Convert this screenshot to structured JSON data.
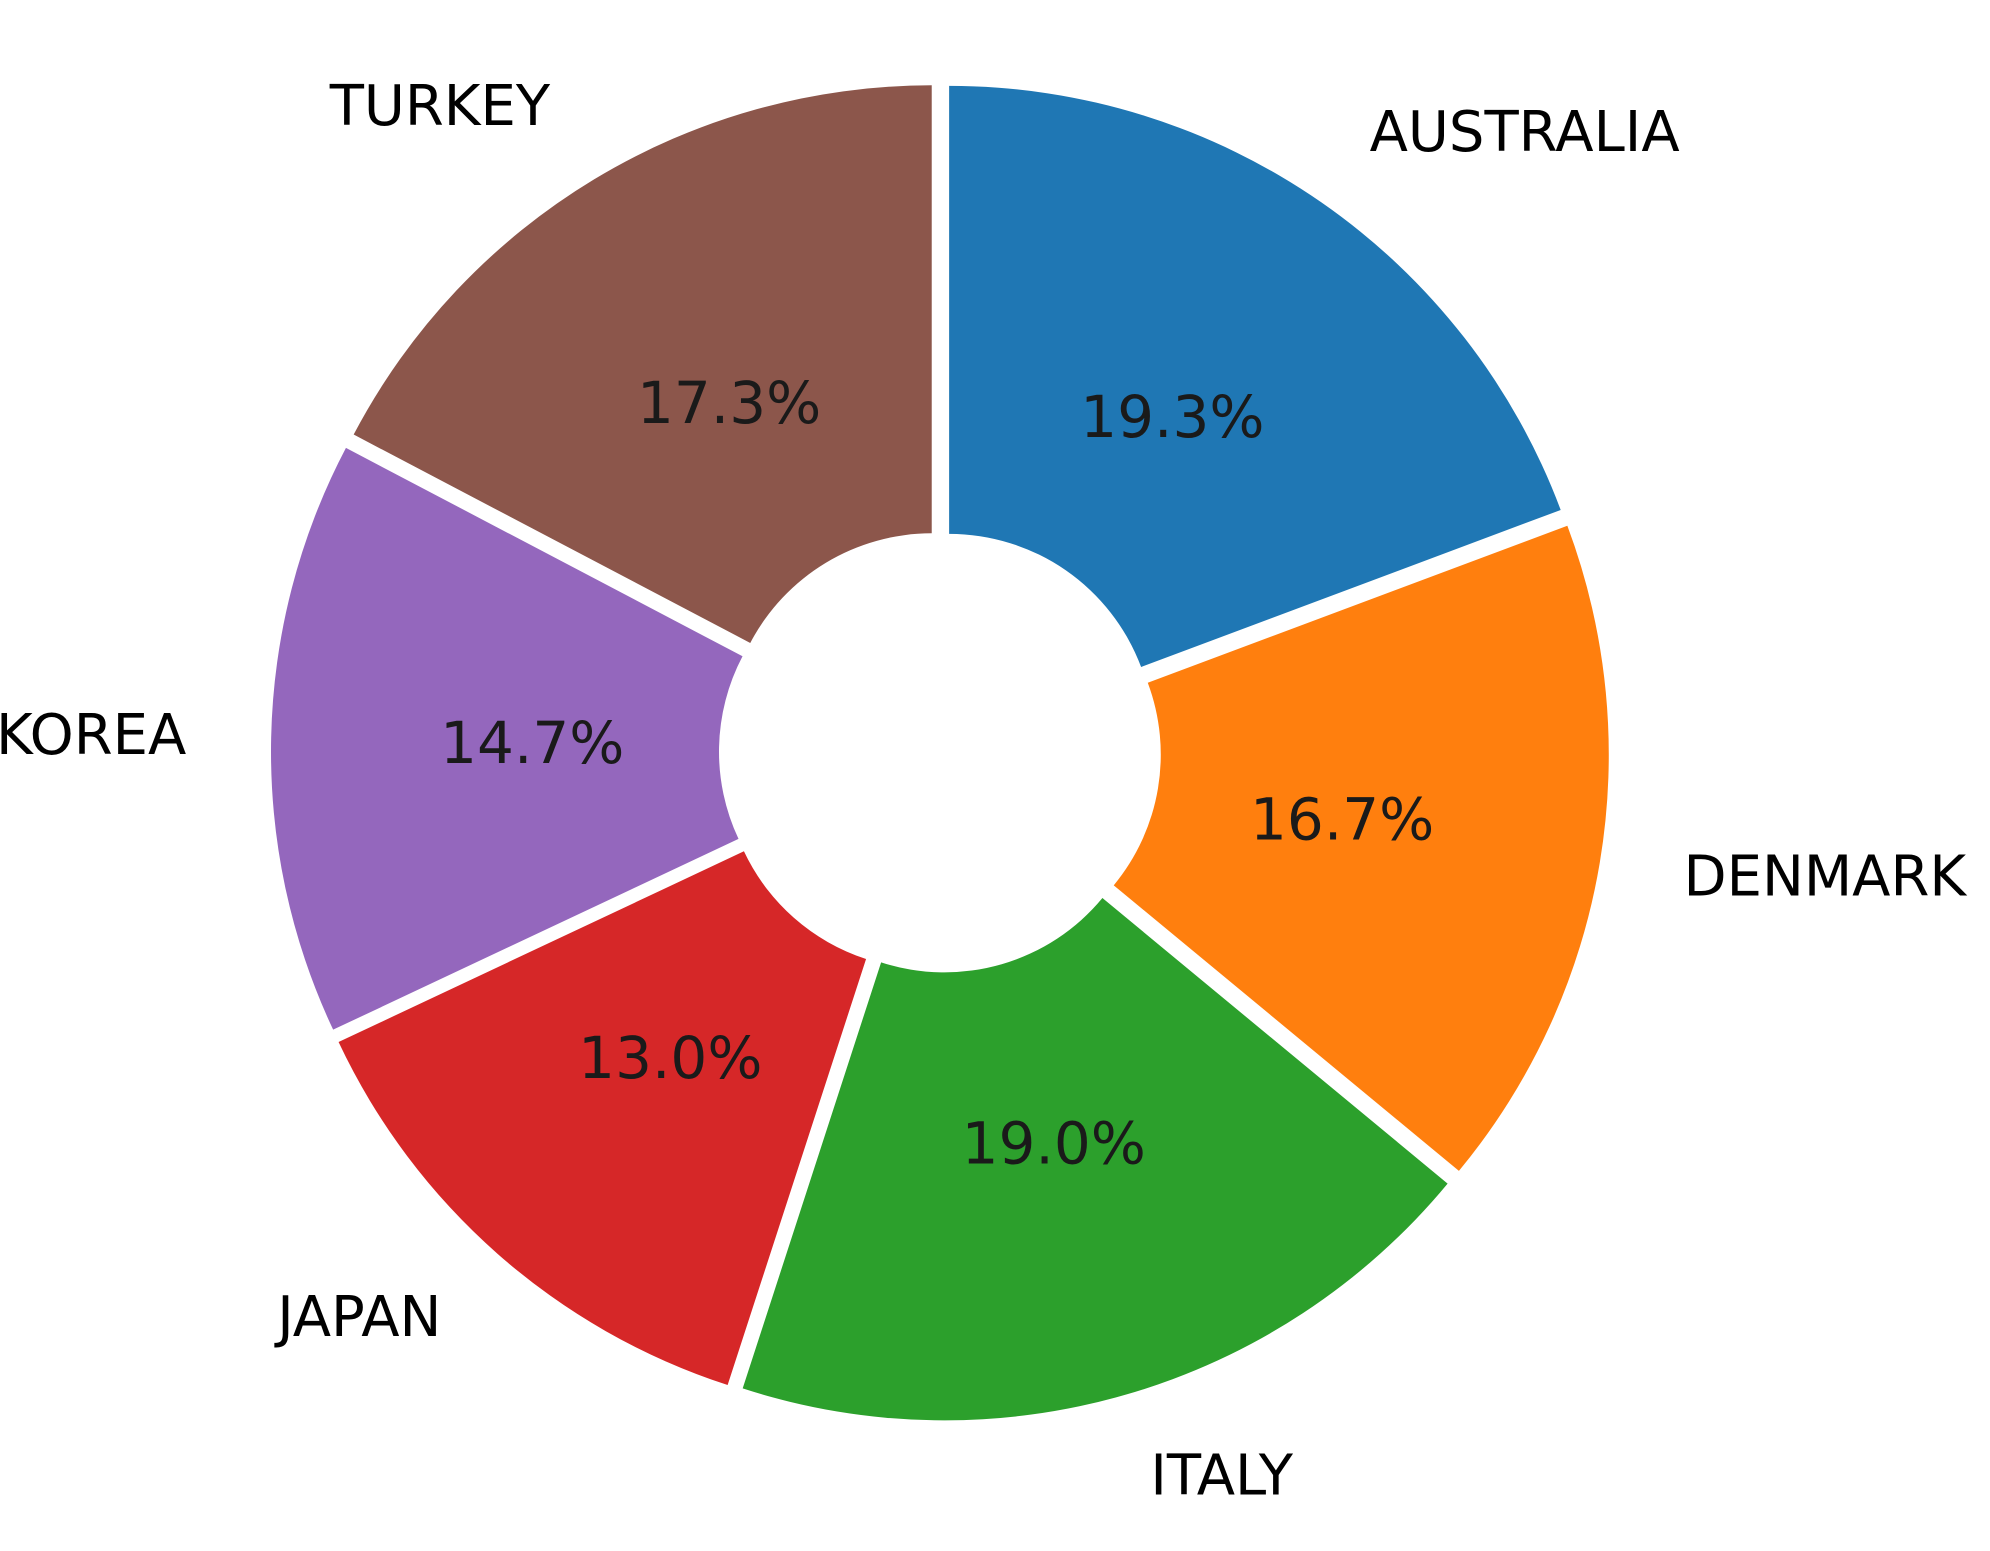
{
  "chart_data": {
    "type": "pie",
    "donut": true,
    "exploded": true,
    "start": "top",
    "direction": "clockwise",
    "slices": [
      {
        "label": "AUSTRALIA",
        "value": 19.3,
        "pct_label": "19.3%",
        "color": "#1f77b4"
      },
      {
        "label": "DENMARK",
        "value": 16.7,
        "pct_label": "16.7%",
        "color": "#ff7f0e"
      },
      {
        "label": "ITALY",
        "value": 19.0,
        "pct_label": "19.0%",
        "color": "#2ca02c"
      },
      {
        "label": "JAPAN",
        "value": 13.0,
        "pct_label": "13.0%",
        "color": "#d62728"
      },
      {
        "label": "KOREA",
        "value": 14.7,
        "pct_label": "14.7%",
        "color": "#9467bd"
      },
      {
        "label": "TURKEY",
        "value": 17.3,
        "pct_label": "17.3%",
        "color": "#8c564b"
      }
    ]
  }
}
